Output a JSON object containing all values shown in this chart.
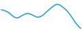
{
  "x": [
    0,
    1,
    2,
    3,
    4,
    5,
    6,
    7,
    8,
    9,
    10,
    11,
    12,
    13,
    14,
    15,
    16,
    17,
    18,
    19,
    20,
    21,
    22,
    23,
    24,
    25,
    26,
    27,
    28,
    29,
    30
  ],
  "y": [
    6.5,
    6.3,
    6.0,
    5.5,
    4.8,
    4.2,
    4.0,
    4.3,
    4.8,
    5.2,
    5.4,
    5.2,
    4.8,
    4.4,
    4.2,
    4.5,
    5.0,
    5.8,
    6.5,
    7.2,
    7.8,
    8.2,
    8.0,
    7.5,
    6.8,
    6.0,
    5.0,
    3.8,
    2.6,
    1.6,
    0.8
  ],
  "line_color": "#2e9fd4",
  "linewidth": 1.2,
  "background_color": "#ffffff",
  "ylim": [
    0.0,
    9.5
  ],
  "xlim": [
    -0.5,
    30.5
  ]
}
